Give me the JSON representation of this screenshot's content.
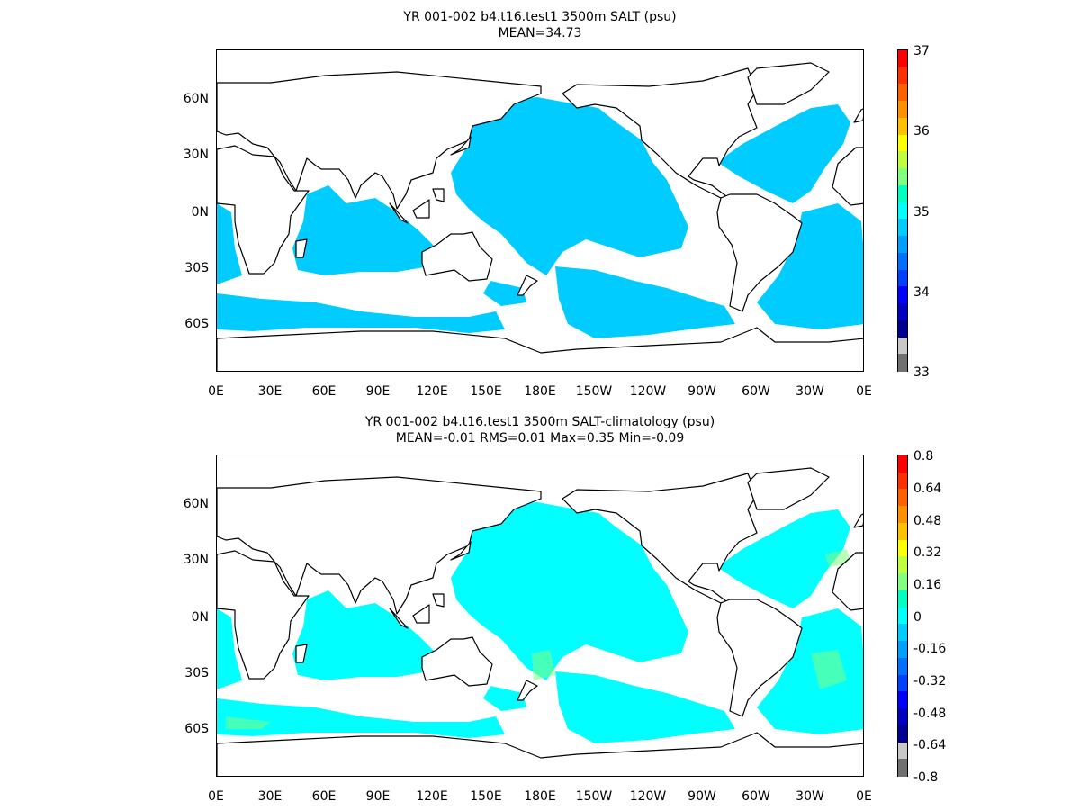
{
  "panels": [
    {
      "title_line1": "YR 001-002 b4.t16.test1 3500m SALT (psu)",
      "title_line2": "MEAN=34.73",
      "ocean_color": "#00ccff",
      "highlight_color": "#00ffff",
      "lat_labels": [
        "60N",
        "30N",
        "0N",
        "30S",
        "60S"
      ],
      "lon_labels": [
        "0E",
        "30E",
        "60E",
        "90E",
        "120E",
        "150E",
        "180E",
        "150W",
        "120W",
        "90W",
        "60W",
        "30W",
        "0E"
      ],
      "colorbar_labels": [
        "37",
        "36",
        "35",
        "34",
        "33"
      ],
      "colorbar_colors": [
        "#ff0000",
        "#ff3000",
        "#ff6000",
        "#ff9000",
        "#ffc000",
        "#ffff00",
        "#c0ff40",
        "#80ff80",
        "#00ffc0",
        "#00ffff",
        "#00ccff",
        "#00a0ff",
        "#0070ff",
        "#0040ff",
        "#0000ff",
        "#0000c0",
        "#000090",
        "#c8c8c8",
        "#707070"
      ]
    },
    {
      "title_line1": "YR 001-002 b4.t16.test1 3500m SALT-climatology (psu)",
      "title_line2": "MEAN=-0.01   RMS=0.01   Max=0.35   Min=-0.09",
      "ocean_color": "#00ffff",
      "highlight_color": "#80ff80",
      "lat_labels": [
        "60N",
        "30N",
        "0N",
        "30S",
        "60S"
      ],
      "lon_labels": [
        "0E",
        "30E",
        "60E",
        "90E",
        "120E",
        "150E",
        "180E",
        "150W",
        "120W",
        "90W",
        "60W",
        "30W",
        "0E"
      ],
      "colorbar_labels": [
        "0.8",
        "0.64",
        "0.48",
        "0.32",
        "0.16",
        "0",
        "-0.16",
        "-0.32",
        "-0.48",
        "-0.64",
        "-0.8"
      ],
      "colorbar_colors": [
        "#ff0000",
        "#ff3000",
        "#ff6000",
        "#ff9000",
        "#ffc000",
        "#ffff00",
        "#c0ff40",
        "#80ff80",
        "#00ffc0",
        "#00ffff",
        "#00ccff",
        "#00a0ff",
        "#0070ff",
        "#0040ff",
        "#0000ff",
        "#0000c0",
        "#000090",
        "#c8c8c8",
        "#707070"
      ]
    }
  ]
}
